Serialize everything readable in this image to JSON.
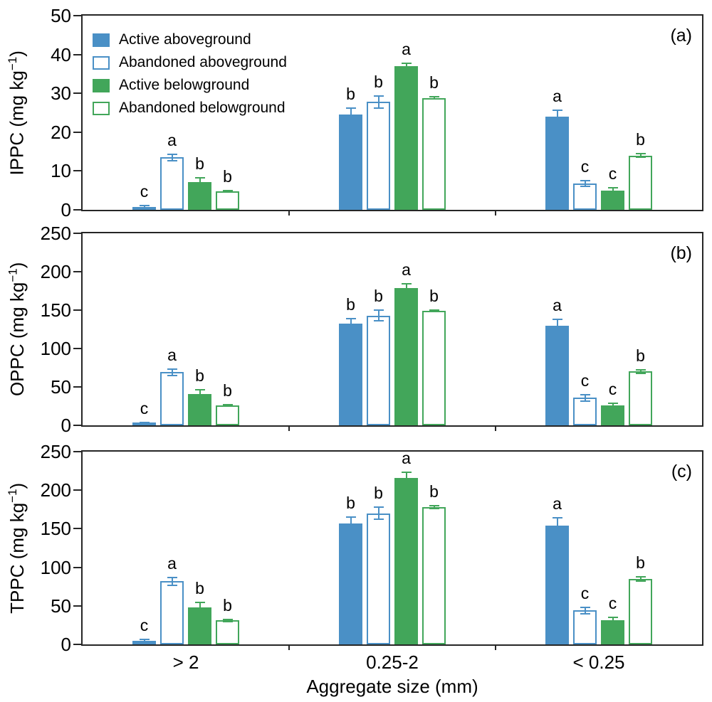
{
  "figure": {
    "xlabel": "Aggregate size (mm)",
    "background": "#ffffff",
    "axis_color": "#262626",
    "text_color": "#000000"
  },
  "legend": {
    "position": "top-left inside panel (a)",
    "items": [
      {
        "label": "Active aboveground",
        "color": "#4A90C6",
        "filled": true
      },
      {
        "label": "Abandoned aboveground",
        "color": "#4A90C6",
        "filled": false
      },
      {
        "label": "Active belowground",
        "color": "#42A65A",
        "filled": true
      },
      {
        "label": "Abandoned belowground",
        "color": "#42A65A",
        "filled": false
      }
    ]
  },
  "chart_data": [
    {
      "type": "bar",
      "panel_label": "(a)",
      "ylabel": "IPPC (mg kg⁻¹)",
      "ylabel_parts": {
        "prefix": "IPPC (mg kg",
        "sup": "−1",
        "suffix": ")"
      },
      "ylim": [
        0,
        50
      ],
      "yticks": [
        0,
        10,
        20,
        30,
        40,
        50
      ],
      "categories": [
        "> 2",
        "0.25-2",
        "< 0.25"
      ],
      "grid": false,
      "error_bars": true,
      "series": [
        {
          "name": "Active aboveground",
          "values": [
            0.8,
            24.5,
            24.0
          ],
          "errors": [
            0.4,
            1.8,
            1.8
          ],
          "letters": [
            "c",
            "b",
            "a"
          ]
        },
        {
          "name": "Abandoned aboveground",
          "values": [
            13.5,
            27.8,
            6.8
          ],
          "errors": [
            1.0,
            1.7,
            0.9
          ],
          "letters": [
            "a",
            "b",
            "c"
          ]
        },
        {
          "name": "Active belowground",
          "values": [
            7.2,
            37.0,
            5.0
          ],
          "errors": [
            1.2,
            1.0,
            0.9
          ],
          "letters": [
            "b",
            "a",
            "c"
          ]
        },
        {
          "name": "Abandoned belowground",
          "values": [
            4.8,
            28.8,
            14.0
          ],
          "errors": [
            0.3,
            0.5,
            0.7
          ],
          "letters": [
            "b",
            "b",
            "b"
          ]
        }
      ]
    },
    {
      "type": "bar",
      "panel_label": "(b)",
      "ylabel": "OPPC (mg kg⁻¹)",
      "ylabel_parts": {
        "prefix": "OPPC (mg kg",
        "sup": "−1",
        "suffix": ")"
      },
      "ylim": [
        0,
        250
      ],
      "yticks": [
        0,
        50,
        100,
        150,
        200,
        250
      ],
      "categories": [
        "> 2",
        "0.25-2",
        "< 0.25"
      ],
      "grid": false,
      "error_bars": true,
      "series": [
        {
          "name": "Active aboveground",
          "values": [
            3,
            132,
            130
          ],
          "errors": [
            1.5,
            8,
            9
          ],
          "letters": [
            "c",
            "b",
            "a"
          ]
        },
        {
          "name": "Abandoned aboveground",
          "values": [
            69,
            143,
            36
          ],
          "errors": [
            5,
            8,
            5
          ],
          "letters": [
            "a",
            "b",
            "c"
          ]
        },
        {
          "name": "Active belowground",
          "values": [
            41,
            179,
            26
          ],
          "errors": [
            6,
            6,
            4
          ],
          "letters": [
            "b",
            "a",
            "c"
          ]
        },
        {
          "name": "Abandoned belowground",
          "values": [
            26,
            149,
            70
          ],
          "errors": [
            2,
            2,
            3
          ],
          "letters": [
            "b",
            "b",
            "b"
          ]
        }
      ]
    },
    {
      "type": "bar",
      "panel_label": "(c)",
      "ylabel": "TPPC (mg kg⁻¹)",
      "ylabel_parts": {
        "prefix": "TPPC (mg kg",
        "sup": "−1",
        "suffix": ")"
      },
      "ylim": [
        0,
        250
      ],
      "yticks": [
        0,
        50,
        100,
        150,
        200,
        250
      ],
      "categories": [
        "> 2",
        "0.25-2",
        "< 0.25"
      ],
      "grid": false,
      "error_bars": true,
      "series": [
        {
          "name": "Active aboveground",
          "values": [
            5,
            157,
            154
          ],
          "errors": [
            2,
            9,
            11
          ],
          "letters": [
            "c",
            "b",
            "a"
          ]
        },
        {
          "name": "Abandoned aboveground",
          "values": [
            82,
            170,
            44
          ],
          "errors": [
            6,
            9,
            5
          ],
          "letters": [
            "a",
            "b",
            "c"
          ]
        },
        {
          "name": "Active belowground",
          "values": [
            48,
            216,
            31
          ],
          "errors": [
            7,
            8,
            5
          ],
          "letters": [
            "b",
            "a",
            "c"
          ]
        },
        {
          "name": "Abandoned belowground",
          "values": [
            31,
            178,
            85
          ],
          "errors": [
            2,
            3,
            4
          ],
          "letters": [
            "b",
            "b",
            "b"
          ]
        }
      ]
    }
  ]
}
